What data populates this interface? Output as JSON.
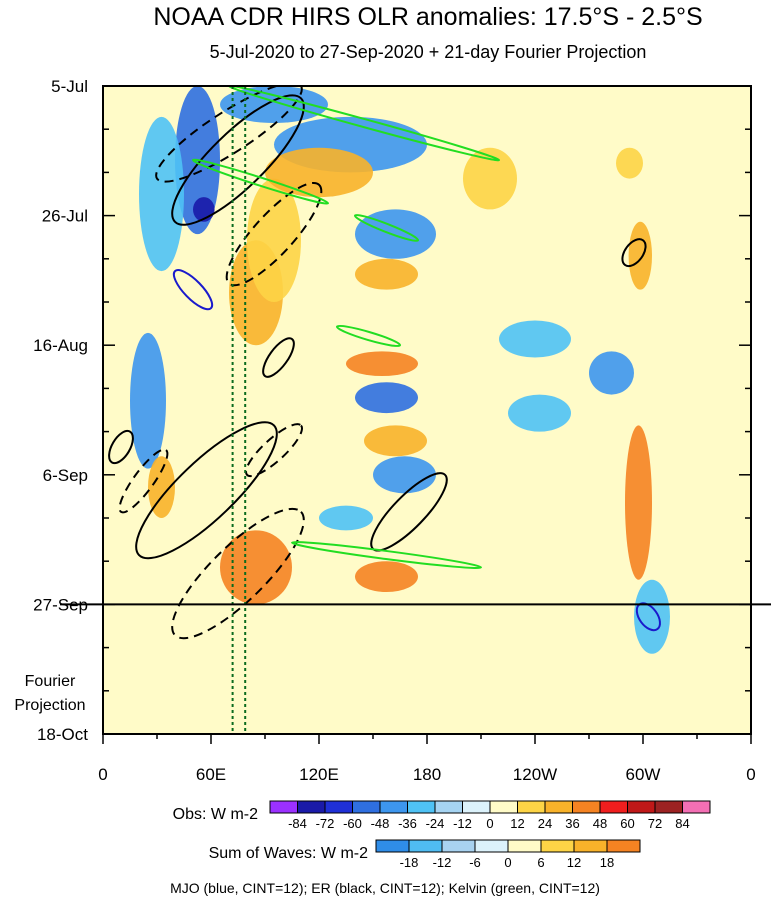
{
  "chart_data": {
    "type": "heatmap",
    "title": "NOAA CDR HIRS OLR anomalies: 17.5°S - 2.5°S",
    "subtitle": "5-Jul-2020 to 27-Sep-2020 + 21-day Fourier Projection",
    "x_ticks": [
      "0",
      "60E",
      "120E",
      "180",
      "120W",
      "60W",
      "0"
    ],
    "x_tick_values": [
      0,
      60,
      120,
      180,
      240,
      300,
      360
    ],
    "xlim": [
      0,
      360
    ],
    "y_ticks": [
      "5-Jul",
      "26-Jul",
      "16-Aug",
      "6-Sep",
      "27-Sep",
      "18-Oct"
    ],
    "y_tick_days": [
      0,
      21,
      42,
      63,
      84,
      105
    ],
    "ylim_days": [
      0,
      105
    ],
    "projection_start_day": 84,
    "projection_label": [
      "Fourier",
      "Projection"
    ],
    "mjo_phase_lines_lon": [
      72,
      79
    ],
    "obs_colorbar": {
      "label": "Obs: W m-2",
      "ticks": [
        "-84",
        "-72",
        "-60",
        "-48",
        "-36",
        "-24",
        "-12",
        "0",
        "12",
        "24",
        "36",
        "48",
        "60",
        "72",
        "84"
      ],
      "colors": [
        "#9b30ff",
        "#1a1aa8",
        "#1f30d6",
        "#2f6fe0",
        "#3d96ee",
        "#4fc2f5",
        "#a6d4f2",
        "#dcf2fb",
        "#fffbc8",
        "#fdd446",
        "#f8b22a",
        "#f58322",
        "#f01e1e",
        "#c01818",
        "#9c2222",
        "#f36fb4"
      ]
    },
    "waves_colorbar": {
      "label": "Sum of Waves: W m-2",
      "ticks": [
        "-18",
        "-12",
        "-6",
        "0",
        "6",
        "12",
        "18"
      ],
      "colors": [
        "#2f8de8",
        "#4fbcf2",
        "#a8d2f0",
        "#dcf2fb",
        "#fffbc8",
        "#fdd446",
        "#f8b22a",
        "#f58322"
      ]
    },
    "footnote": "MJO (blue, CINT=12); ER (black, CINT=12); Kelvin (green, CINT=12)",
    "anomaly_bands": [
      {
        "sign": "neg",
        "lon": [
          40,
          65
        ],
        "day": [
          0,
          24
        ],
        "level": 3
      },
      {
        "sign": "neg",
        "lon": [
          50,
          62
        ],
        "day": [
          18,
          22
        ],
        "level": 5
      },
      {
        "sign": "neg",
        "lon": [
          20,
          45
        ],
        "day": [
          5,
          30
        ],
        "level": 1
      },
      {
        "sign": "neg",
        "lon": [
          15,
          35
        ],
        "day": [
          40,
          62
        ],
        "level": 2
      },
      {
        "sign": "pos",
        "lon": [
          70,
          100
        ],
        "day": [
          25,
          42
        ],
        "level": 2
      },
      {
        "sign": "pos",
        "lon": [
          80,
          110
        ],
        "day": [
          15,
          35
        ],
        "level": 1
      },
      {
        "sign": "pos",
        "lon": [
          65,
          105
        ],
        "day": [
          72,
          84
        ],
        "level": 3
      },
      {
        "sign": "pos",
        "lon": [
          25,
          40
        ],
        "day": [
          60,
          70
        ],
        "level": 2
      },
      {
        "sign": "neg",
        "lon": [
          65,
          125
        ],
        "day": [
          0,
          6
        ],
        "level": 2
      },
      {
        "sign": "neg",
        "lon": [
          95,
          180
        ],
        "day": [
          5,
          14
        ],
        "level": 2
      },
      {
        "sign": "pos",
        "lon": [
          90,
          150
        ],
        "day": [
          10,
          18
        ],
        "level": 2
      },
      {
        "sign": "neg",
        "lon": [
          140,
          185
        ],
        "day": [
          20,
          28
        ],
        "level": 2
      },
      {
        "sign": "pos",
        "lon": [
          140,
          175
        ],
        "day": [
          28,
          33
        ],
        "level": 2
      },
      {
        "sign": "pos",
        "lon": [
          135,
          175
        ],
        "day": [
          43,
          47
        ],
        "level": 3
      },
      {
        "sign": "neg",
        "lon": [
          140,
          175
        ],
        "day": [
          48,
          53
        ],
        "level": 3
      },
      {
        "sign": "pos",
        "lon": [
          145,
          180
        ],
        "day": [
          55,
          60
        ],
        "level": 2
      },
      {
        "sign": "neg",
        "lon": [
          150,
          185
        ],
        "day": [
          60,
          66
        ],
        "level": 2
      },
      {
        "sign": "pos",
        "lon": [
          140,
          175
        ],
        "day": [
          77,
          82
        ],
        "level": 3
      },
      {
        "sign": "neg",
        "lon": [
          120,
          150
        ],
        "day": [
          68,
          72
        ],
        "level": 1
      },
      {
        "sign": "pos",
        "lon": [
          290,
          305
        ],
        "day": [
          55,
          80
        ],
        "level": 3
      },
      {
        "sign": "pos",
        "lon": [
          292,
          305
        ],
        "day": [
          22,
          33
        ],
        "level": 2
      },
      {
        "sign": "pos",
        "lon": [
          285,
          300
        ],
        "day": [
          10,
          15
        ],
        "level": 1
      },
      {
        "sign": "neg",
        "lon": [
          270,
          295
        ],
        "day": [
          43,
          50
        ],
        "level": 2
      },
      {
        "sign": "neg",
        "lon": [
          225,
          260
        ],
        "day": [
          50,
          56
        ],
        "level": 1
      },
      {
        "sign": "neg",
        "lon": [
          295,
          315
        ],
        "day": [
          80,
          92
        ],
        "level": 1
      },
      {
        "sign": "pos",
        "lon": [
          200,
          230
        ],
        "day": [
          10,
          20
        ],
        "level": 1
      },
      {
        "sign": "neg",
        "lon": [
          220,
          260
        ],
        "day": [
          38,
          44
        ],
        "level": 1
      }
    ],
    "wave_contours": [
      {
        "wave": "ER",
        "dash": true,
        "lon": [
          30,
          110
        ],
        "day": [
          0,
          15
        ]
      },
      {
        "wave": "ER",
        "dash": false,
        "lon": [
          40,
          110
        ],
        "day": [
          2,
          22
        ]
      },
      {
        "wave": "ER",
        "dash": true,
        "lon": [
          70,
          120
        ],
        "day": [
          16,
          32
        ]
      },
      {
        "wave": "MJO",
        "dash": false,
        "lon": [
          40,
          60
        ],
        "day": [
          30,
          36
        ]
      },
      {
        "wave": "ER",
        "dash": false,
        "lon": [
          90,
          105
        ],
        "day": [
          41,
          47
        ]
      },
      {
        "wave": "ER",
        "dash": false,
        "lon": [
          5,
          15
        ],
        "day": [
          56,
          61
        ]
      },
      {
        "wave": "ER",
        "dash": true,
        "lon": [
          10,
          35
        ],
        "day": [
          59,
          69
        ]
      },
      {
        "wave": "ER",
        "dash": false,
        "lon": [
          20,
          95
        ],
        "day": [
          55,
          76
        ]
      },
      {
        "wave": "ER",
        "dash": true,
        "lon": [
          80,
          110
        ],
        "day": [
          55,
          63
        ]
      },
      {
        "wave": "ER",
        "dash": false,
        "lon": [
          150,
          190
        ],
        "day": [
          63,
          75
        ]
      },
      {
        "wave": "ER",
        "dash": true,
        "lon": [
          40,
          110
        ],
        "day": [
          69,
          89
        ]
      },
      {
        "wave": "ER",
        "dash": false,
        "lon": [
          290,
          300
        ],
        "day": [
          25,
          29
        ]
      },
      {
        "wave": "Kelvin",
        "dash": false,
        "lon": [
          70,
          220
        ],
        "day": [
          0,
          12
        ]
      },
      {
        "wave": "Kelvin",
        "dash": false,
        "lon": [
          50,
          125
        ],
        "day": [
          12,
          19
        ]
      },
      {
        "wave": "Kelvin",
        "dash": false,
        "lon": [
          140,
          175
        ],
        "day": [
          21,
          25
        ]
      },
      {
        "wave": "Kelvin",
        "dash": false,
        "lon": [
          130,
          165
        ],
        "day": [
          39,
          42
        ]
      },
      {
        "wave": "Kelvin",
        "dash": false,
        "lon": [
          105,
          210
        ],
        "day": [
          74,
          78
        ]
      },
      {
        "wave": "MJO",
        "dash": false,
        "lon": [
          298,
          308
        ],
        "day": [
          84,
          88
        ]
      }
    ]
  }
}
